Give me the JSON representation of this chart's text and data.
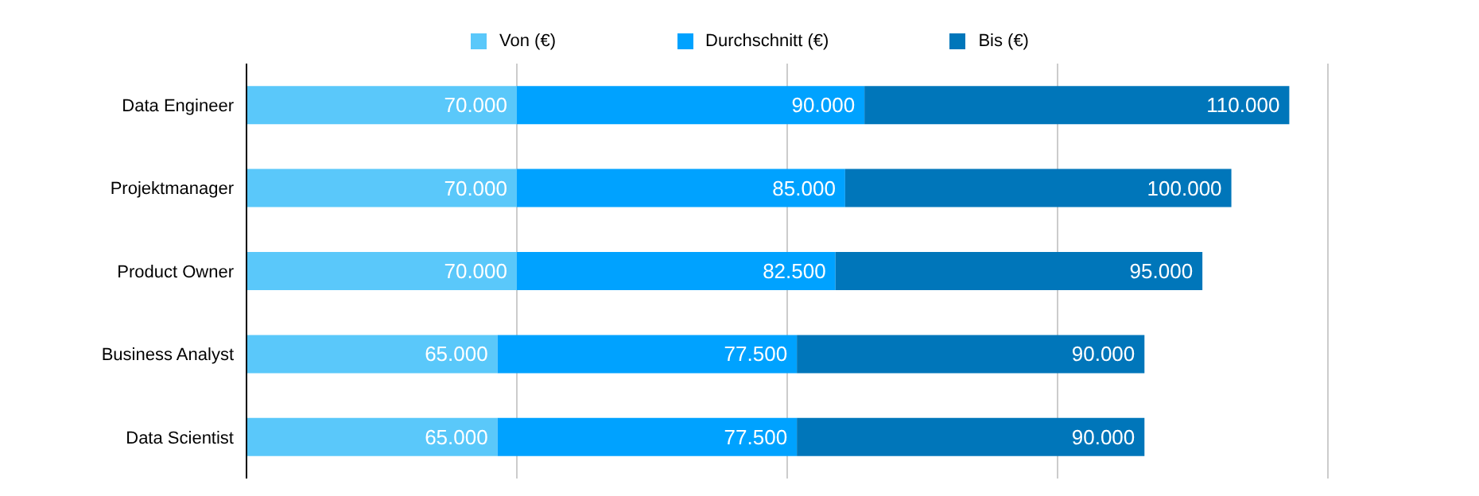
{
  "chart_data": {
    "type": "bar",
    "orientation": "horizontal",
    "stacked": true,
    "categories": [
      "Data Engineer",
      "Projektmanager",
      "Product Owner",
      "Business Analyst",
      "Data Scientist"
    ],
    "series": [
      {
        "name": "Von (€)",
        "color": "#5ac8fa",
        "values": [
          70000,
          70000,
          70000,
          65000,
          65000
        ],
        "value_labels": [
          "70.000",
          "70.000",
          "70.000",
          "65.000",
          "65.000"
        ]
      },
      {
        "name": "Durchschnitt (€)",
        "color": "#00a2ff",
        "values": [
          90000,
          85000,
          82500,
          77500,
          77500
        ],
        "value_labels": [
          "90.000",
          "85.000",
          "82.500",
          "77.500",
          "77.500"
        ]
      },
      {
        "name": "Bis (€)",
        "color": "#0076ba",
        "values": [
          110000,
          100000,
          95000,
          90000,
          90000
        ],
        "value_labels": [
          "110.000",
          "100.000",
          "95.000",
          "90.000",
          "90.000"
        ]
      }
    ],
    "tick_labels": "y",
    "grid": "x",
    "legend": "top"
  }
}
